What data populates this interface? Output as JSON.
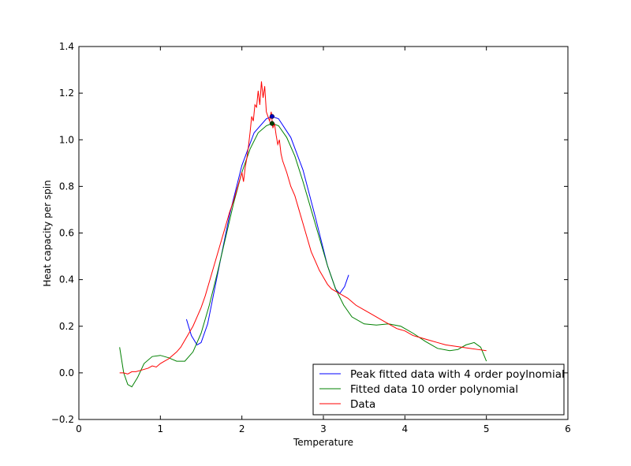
{
  "chart_data": {
    "type": "line",
    "title": "",
    "xlabel": "Temperature",
    "ylabel": "Heat capacity per spin",
    "xlim": [
      0,
      6
    ],
    "ylim": [
      -0.2,
      1.4
    ],
    "xticks": [
      0,
      1,
      2,
      3,
      4,
      5,
      6
    ],
    "yticks": [
      -0.2,
      0.0,
      0.2,
      0.4,
      0.6,
      0.8,
      1.0,
      1.2,
      1.4
    ],
    "xtick_labels": [
      "0",
      "1",
      "2",
      "3",
      "4",
      "5",
      "6"
    ],
    "ytick_labels": [
      "−0.2",
      "0.0",
      "0.2",
      "0.4",
      "0.6",
      "0.8",
      "1.0",
      "1.2",
      "1.4"
    ],
    "grid": false,
    "legend_position": "bottom-right",
    "series": [
      {
        "name": "Peak fitted data with 4 order poylnomial",
        "color": "#0000ff",
        "x": [
          1.32,
          1.38,
          1.45,
          1.5,
          1.58,
          1.7,
          1.85,
          2.0,
          2.15,
          2.3,
          2.37,
          2.45,
          2.6,
          2.75,
          2.9,
          3.05,
          3.15,
          3.2,
          3.26,
          3.31
        ],
        "y": [
          0.23,
          0.16,
          0.12,
          0.13,
          0.21,
          0.42,
          0.68,
          0.89,
          1.03,
          1.09,
          1.1,
          1.09,
          1.01,
          0.87,
          0.67,
          0.46,
          0.36,
          0.34,
          0.37,
          0.42
        ]
      },
      {
        "name": "Fitted data 10 order polynomial",
        "color": "#008000",
        "x": [
          0.5,
          0.55,
          0.6,
          0.65,
          0.72,
          0.8,
          0.9,
          1.0,
          1.1,
          1.2,
          1.3,
          1.4,
          1.5,
          1.6,
          1.7,
          1.8,
          1.9,
          2.0,
          2.1,
          2.2,
          2.3,
          2.37,
          2.45,
          2.55,
          2.65,
          2.75,
          2.85,
          2.95,
          3.05,
          3.15,
          3.25,
          3.35,
          3.5,
          3.65,
          3.8,
          3.95,
          4.1,
          4.25,
          4.4,
          4.55,
          4.65,
          4.75,
          4.85,
          4.93,
          5.0
        ],
        "y": [
          0.11,
          0.0,
          -0.05,
          -0.06,
          -0.02,
          0.04,
          0.07,
          0.075,
          0.065,
          0.05,
          0.05,
          0.09,
          0.17,
          0.29,
          0.43,
          0.58,
          0.73,
          0.86,
          0.96,
          1.03,
          1.06,
          1.07,
          1.06,
          1.01,
          0.93,
          0.82,
          0.7,
          0.58,
          0.46,
          0.36,
          0.29,
          0.24,
          0.21,
          0.205,
          0.21,
          0.2,
          0.17,
          0.135,
          0.105,
          0.095,
          0.1,
          0.12,
          0.13,
          0.11,
          0.05
        ]
      },
      {
        "name": "Data",
        "color": "#ff0000",
        "x": [
          0.5,
          0.55,
          0.6,
          0.65,
          0.7,
          0.75,
          0.8,
          0.85,
          0.9,
          0.95,
          1.0,
          1.05,
          1.1,
          1.15,
          1.2,
          1.25,
          1.3,
          1.35,
          1.4,
          1.45,
          1.5,
          1.55,
          1.6,
          1.65,
          1.7,
          1.75,
          1.8,
          1.85,
          1.9,
          1.95,
          2.0,
          2.02,
          2.04,
          2.06,
          2.08,
          2.1,
          2.12,
          2.14,
          2.16,
          2.18,
          2.2,
          2.22,
          2.24,
          2.26,
          2.28,
          2.3,
          2.32,
          2.34,
          2.36,
          2.38,
          2.4,
          2.42,
          2.44,
          2.46,
          2.48,
          2.5,
          2.55,
          2.6,
          2.65,
          2.7,
          2.75,
          2.8,
          2.85,
          2.9,
          2.95,
          3.0,
          3.05,
          3.1,
          3.15,
          3.2,
          3.25,
          3.3,
          3.4,
          3.5,
          3.6,
          3.7,
          3.8,
          3.9,
          4.0,
          4.1,
          4.2,
          4.3,
          4.4,
          4.5,
          4.6,
          4.7,
          4.8,
          4.9,
          5.0
        ],
        "y": [
          0.0,
          0.0,
          -0.005,
          0.005,
          0.005,
          0.01,
          0.015,
          0.02,
          0.03,
          0.025,
          0.04,
          0.05,
          0.06,
          0.075,
          0.09,
          0.11,
          0.14,
          0.17,
          0.2,
          0.24,
          0.28,
          0.33,
          0.39,
          0.45,
          0.51,
          0.57,
          0.63,
          0.69,
          0.74,
          0.8,
          0.86,
          0.82,
          0.88,
          0.92,
          0.97,
          1.03,
          1.1,
          1.08,
          1.15,
          1.14,
          1.21,
          1.15,
          1.25,
          1.18,
          1.23,
          1.12,
          1.1,
          1.08,
          1.12,
          1.05,
          1.07,
          1.02,
          0.98,
          1.0,
          0.94,
          0.91,
          0.86,
          0.8,
          0.76,
          0.7,
          0.64,
          0.58,
          0.52,
          0.48,
          0.44,
          0.41,
          0.38,
          0.36,
          0.35,
          0.34,
          0.33,
          0.32,
          0.29,
          0.27,
          0.25,
          0.23,
          0.21,
          0.19,
          0.18,
          0.16,
          0.15,
          0.14,
          0.13,
          0.12,
          0.115,
          0.11,
          0.105,
          0.1,
          0.095
        ]
      }
    ],
    "markers": [
      {
        "series": "Peak fitted data with 4 order poylnomial",
        "x": 2.37,
        "y": 1.1,
        "color": "#0000bb"
      },
      {
        "series": "Fitted data 10 order polynomial",
        "x": 2.37,
        "y": 1.07,
        "color": "#004400"
      }
    ]
  }
}
